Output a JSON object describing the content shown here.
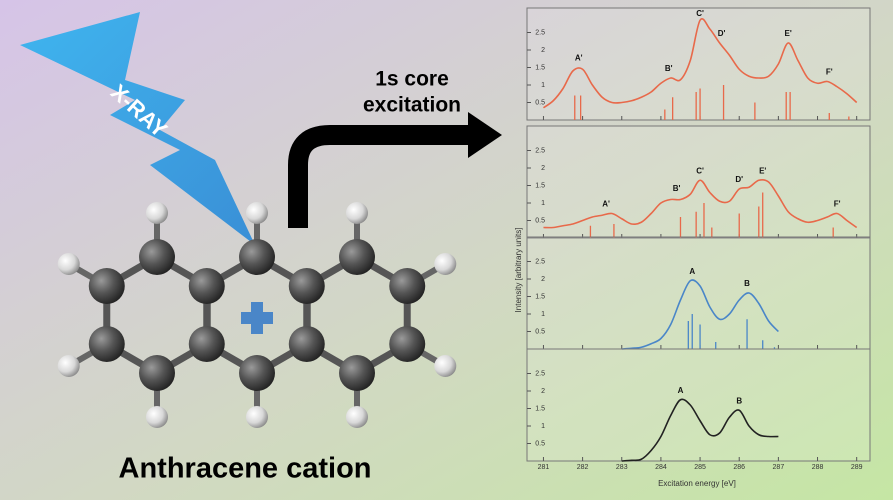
{
  "title": "Anthracene cation",
  "xray": "X-RAY",
  "arrow_label": [
    "1s core",
    "excitation"
  ],
  "spectra": {
    "xlabel": "Excitation energy [eV]",
    "ylabel": "Intensity [arbitrary units]",
    "xlim": [
      280.58,
      289.34
    ],
    "xticks": [
      281,
      282,
      283,
      284,
      285,
      286,
      287,
      288,
      289
    ],
    "ylim": [
      0,
      3.2
    ],
    "yticks": [
      0.5,
      1.0,
      1.5,
      2.0,
      2.5
    ],
    "x": [
      281,
      281.25,
      281.5,
      281.75,
      282,
      282.25,
      282.5,
      282.75,
      283,
      283.25,
      283.5,
      283.75,
      284,
      284.25,
      284.5,
      284.75,
      285,
      285.25,
      285.5,
      285.75,
      286,
      286.25,
      286.5,
      286.75,
      287,
      287.25,
      287.5,
      287.75,
      288,
      288.25,
      288.5,
      288.75,
      289
    ],
    "panels": [
      {
        "color": "#e8694a",
        "values": [
          0.35,
          0.55,
          0.9,
          1.4,
          1.45,
          1.0,
          0.65,
          0.5,
          0.5,
          0.55,
          0.65,
          0.8,
          1.05,
          1.2,
          1.15,
          1.7,
          2.85,
          2.6,
          2.2,
          1.85,
          1.45,
          1.25,
          1.2,
          1.25,
          1.6,
          2.2,
          1.7,
          1.2,
          1.05,
          1.1,
          0.95,
          0.75,
          0.5
        ],
        "sticks_x": [
          281.8,
          281.95,
          284.1,
          284.3,
          284.9,
          285.0,
          285.6,
          286.4,
          287.2,
          287.3,
          288.3,
          288.8
        ],
        "sticks_y": [
          0.7,
          0.7,
          0.3,
          0.65,
          0.8,
          0.9,
          1.0,
          0.5,
          0.8,
          0.8,
          0.2,
          0.1
        ],
        "peaks": [
          {
            "label": "A'",
            "x": 281.9,
            "y": 1.5
          },
          {
            "label": "B'",
            "x": 284.2,
            "y": 1.2
          },
          {
            "label": "C'",
            "x": 285.0,
            "y": 2.9
          },
          {
            "label": "D'",
            "x": 285.55,
            "y": 2.2
          },
          {
            "label": "E'",
            "x": 287.25,
            "y": 2.2
          },
          {
            "label": "F'",
            "x": 288.3,
            "y": 1.1
          }
        ]
      },
      {
        "color": "#e8694a",
        "values": [
          0.3,
          0.3,
          0.35,
          0.4,
          0.5,
          0.6,
          0.65,
          0.7,
          0.55,
          0.4,
          0.45,
          0.7,
          1.0,
          1.1,
          1.1,
          1.25,
          1.65,
          1.3,
          1.05,
          1.05,
          1.4,
          1.45,
          1.65,
          1.6,
          1.2,
          0.75,
          0.55,
          0.45,
          0.5,
          0.6,
          0.7,
          0.5,
          0.3
        ],
        "sticks_x": [
          282.2,
          282.8,
          284.5,
          284.9,
          285.1,
          285.3,
          286.0,
          286.5,
          286.6,
          288.4
        ],
        "sticks_y": [
          0.35,
          0.4,
          0.6,
          0.75,
          1.0,
          0.3,
          0.7,
          0.9,
          1.3,
          0.3
        ],
        "peaks": [
          {
            "label": "A'",
            "x": 282.6,
            "y": 0.7
          },
          {
            "label": "B'",
            "x": 284.4,
            "y": 1.15
          },
          {
            "label": "C'",
            "x": 285.0,
            "y": 1.65
          },
          {
            "label": "D'",
            "x": 286.0,
            "y": 1.4
          },
          {
            "label": "E'",
            "x": 286.6,
            "y": 1.65
          },
          {
            "label": "F'",
            "x": 288.5,
            "y": 0.7
          }
        ]
      },
      {
        "color": "#4a86c8",
        "values": [
          null,
          null,
          null,
          null,
          null,
          null,
          null,
          null,
          0,
          0.02,
          0.05,
          0.15,
          0.3,
          0.7,
          1.4,
          1.95,
          1.8,
          1.2,
          0.85,
          1.0,
          1.4,
          1.6,
          1.3,
          0.8,
          0.5,
          null,
          null,
          null,
          null,
          null,
          null,
          null,
          null
        ],
        "sticks_x": [
          284.7,
          284.8,
          285.0,
          285.4,
          286.2,
          286.6,
          286.9
        ],
        "sticks_y": [
          0.8,
          1.0,
          0.7,
          0.2,
          0.85,
          0.25,
          0.05
        ],
        "peaks": [
          {
            "label": "A",
            "x": 284.8,
            "y": 1.95
          },
          {
            "label": "B",
            "x": 286.2,
            "y": 1.6
          }
        ]
      },
      {
        "color": "#222222",
        "values": [
          null,
          null,
          null,
          null,
          null,
          null,
          null,
          null,
          0,
          0.02,
          0.05,
          0.3,
          0.7,
          1.3,
          1.75,
          1.6,
          1.15,
          0.75,
          0.8,
          1.25,
          1.45,
          1.0,
          0.75,
          0.7,
          0.7,
          null,
          null,
          null,
          null,
          null,
          null,
          null,
          null
        ],
        "sticks_x": [],
        "sticks_y": [],
        "peaks": [
          {
            "label": "A",
            "x": 284.5,
            "y": 1.75
          },
          {
            "label": "B",
            "x": 286.0,
            "y": 1.45
          }
        ]
      }
    ]
  }
}
